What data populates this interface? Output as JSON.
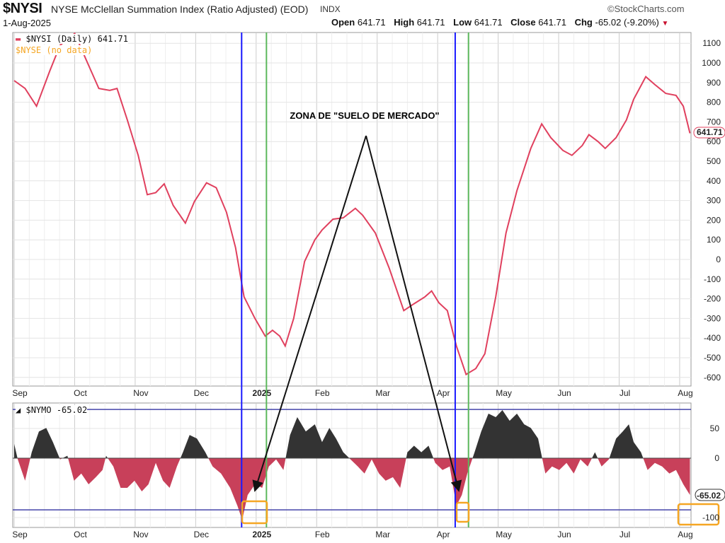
{
  "header": {
    "symbol": "$NYSI",
    "title": "NYSE McClellan Summation Index (Ratio Adjusted) (EOD)",
    "exchange": "INDX",
    "brand": "©StockCharts.com",
    "date": "1-Aug-2025",
    "open_label": "Open",
    "open": "641.71",
    "high_label": "High",
    "high": "641.71",
    "low_label": "Low",
    "low": "641.71",
    "close_label": "Close",
    "close": "641.71",
    "chg_label": "Chg",
    "chg": "-65.02 (-9.20%)",
    "chg_arrow": "▼"
  },
  "colors": {
    "nysi": "#e0405e",
    "nymo_pos": "#333333",
    "nymo_neg": "#c8405a",
    "blue": "#1a1aff",
    "green": "#5cb85c",
    "orange": "#f5a623",
    "ref": "#4444aa"
  },
  "chart_data": [
    {
      "type": "line",
      "title": "$NYSI (Daily) 641.71",
      "legend": [
        "$NYSI (Daily) 641.71",
        "$NYSE (no data)"
      ],
      "legend_placement": "top-left",
      "x_unit": "months since 1-Sep-2024",
      "x_ticks": [
        {
          "m": 0,
          "label": "Sep"
        },
        {
          "m": 1,
          "label": "Oct"
        },
        {
          "m": 2,
          "label": "Nov"
        },
        {
          "m": 3,
          "label": "Dec"
        },
        {
          "m": 4,
          "label": "2025"
        },
        {
          "m": 5,
          "label": "Feb"
        },
        {
          "m": 6,
          "label": "Mar"
        },
        {
          "m": 7,
          "label": "Apr"
        },
        {
          "m": 8,
          "label": "May"
        },
        {
          "m": 9,
          "label": "Jun"
        },
        {
          "m": 10,
          "label": "Jul"
        },
        {
          "m": 11,
          "label": "Aug"
        }
      ],
      "ylim": [
        -650,
        1150
      ],
      "y_ticks": [
        1100,
        1000,
        900,
        800,
        700,
        600,
        500,
        400,
        300,
        200,
        100,
        0,
        -100,
        -200,
        -300,
        -400,
        -500,
        -600
      ],
      "last_value_label": "641.71",
      "series": [
        {
          "name": "$NYSI",
          "points": [
            [
              0,
              910
            ],
            [
              0.18,
              870
            ],
            [
              0.37,
              780
            ],
            [
              0.59,
              960
            ],
            [
              0.76,
              1090
            ],
            [
              1.0,
              1150
            ],
            [
              1.17,
              1030
            ],
            [
              1.4,
              870
            ],
            [
              1.58,
              860
            ],
            [
              1.7,
              870
            ],
            [
              1.87,
              710
            ],
            [
              2.05,
              530
            ],
            [
              2.2,
              330
            ],
            [
              2.34,
              340
            ],
            [
              2.48,
              385
            ],
            [
              2.63,
              275
            ],
            [
              2.83,
              185
            ],
            [
              2.98,
              295
            ],
            [
              3.18,
              390
            ],
            [
              3.34,
              365
            ],
            [
              3.51,
              240
            ],
            [
              3.66,
              60
            ],
            [
              3.8,
              -190
            ],
            [
              3.98,
              -300
            ],
            [
              4.15,
              -390
            ],
            [
              4.27,
              -360
            ],
            [
              4.39,
              -390
            ],
            [
              4.48,
              -440
            ],
            [
              4.62,
              -300
            ],
            [
              4.8,
              -10
            ],
            [
              4.97,
              100
            ],
            [
              5.09,
              150
            ],
            [
              5.27,
              205
            ],
            [
              5.44,
              212
            ],
            [
              5.64,
              260
            ],
            [
              5.76,
              225
            ],
            [
              5.97,
              135
            ],
            [
              6.2,
              -45
            ],
            [
              6.44,
              -260
            ],
            [
              6.61,
              -225
            ],
            [
              6.79,
              -190
            ],
            [
              6.9,
              -160
            ],
            [
              7.02,
              -220
            ],
            [
              7.16,
              -260
            ],
            [
              7.31,
              -440
            ],
            [
              7.47,
              -585
            ],
            [
              7.63,
              -555
            ],
            [
              7.78,
              -480
            ],
            [
              7.96,
              -190
            ],
            [
              8.13,
              135
            ],
            [
              8.31,
              350
            ],
            [
              8.54,
              565
            ],
            [
              8.72,
              690
            ],
            [
              8.87,
              620
            ],
            [
              9.07,
              555
            ],
            [
              9.22,
              530
            ],
            [
              9.39,
              580
            ],
            [
              9.5,
              635
            ],
            [
              9.65,
              600
            ],
            [
              9.77,
              565
            ],
            [
              9.95,
              620
            ],
            [
              10.12,
              710
            ],
            [
              10.24,
              815
            ],
            [
              10.44,
              930
            ],
            [
              10.59,
              890
            ],
            [
              10.77,
              845
            ],
            [
              10.94,
              835
            ],
            [
              11.06,
              780
            ],
            [
              11.17,
              642
            ]
          ]
        }
      ],
      "vertical_markers": [
        {
          "m": 3.76,
          "color": "blue"
        },
        {
          "m": 4.17,
          "color": "green"
        },
        {
          "m": 7.29,
          "color": "blue"
        },
        {
          "m": 7.51,
          "color": "green"
        }
      ],
      "annotation": "ZONA DE \"SUELO DE MERCADO\""
    },
    {
      "type": "area",
      "title": "$NYMO -65.02",
      "legend": [
        "$NYMO -65.02"
      ],
      "ylim": [
        -115,
        90
      ],
      "y_ticks": [
        50,
        0,
        -100
      ],
      "reference_lines": [
        82,
        -87
      ],
      "last_value_label": "-65.02",
      "highlighted_level_label": "-100",
      "series": [
        {
          "name": "$NYMO",
          "points": [
            [
              0,
              24
            ],
            [
              0.06,
              -2
            ],
            [
              0.18,
              -38
            ],
            [
              0.29,
              10
            ],
            [
              0.41,
              45
            ],
            [
              0.53,
              51
            ],
            [
              0.64,
              27
            ],
            [
              0.76,
              -2
            ],
            [
              0.88,
              4
            ],
            [
              0.99,
              -38
            ],
            [
              1.11,
              -26
            ],
            [
              1.23,
              -44
            ],
            [
              1.35,
              -32
            ],
            [
              1.46,
              -20
            ],
            [
              1.52,
              4
            ],
            [
              1.64,
              -14
            ],
            [
              1.76,
              -50
            ],
            [
              1.87,
              -50
            ],
            [
              1.99,
              -38
            ],
            [
              2.11,
              -56
            ],
            [
              2.22,
              -44
            ],
            [
              2.34,
              -8
            ],
            [
              2.46,
              -38
            ],
            [
              2.57,
              -50
            ],
            [
              2.69,
              -14
            ],
            [
              2.79,
              10
            ],
            [
              2.9,
              39
            ],
            [
              3.02,
              33
            ],
            [
              3.16,
              10
            ],
            [
              3.28,
              -14
            ],
            [
              3.42,
              -26
            ],
            [
              3.57,
              -50
            ],
            [
              3.69,
              -80
            ],
            [
              3.77,
              -104
            ],
            [
              3.86,
              -62
            ],
            [
              3.98,
              -44
            ],
            [
              4.1,
              -50
            ],
            [
              4.21,
              -14
            ],
            [
              4.33,
              -2
            ],
            [
              4.45,
              -20
            ],
            [
              4.56,
              39
            ],
            [
              4.68,
              69
            ],
            [
              4.82,
              45
            ],
            [
              4.97,
              57
            ],
            [
              5.09,
              27
            ],
            [
              5.21,
              51
            ],
            [
              5.32,
              33
            ],
            [
              5.44,
              10
            ],
            [
              5.56,
              -2
            ],
            [
              5.68,
              -14
            ],
            [
              5.79,
              -26
            ],
            [
              5.91,
              -2
            ],
            [
              6.03,
              -26
            ],
            [
              6.14,
              -38
            ],
            [
              6.26,
              -32
            ],
            [
              6.38,
              -50
            ],
            [
              6.5,
              10
            ],
            [
              6.61,
              21
            ],
            [
              6.73,
              10
            ],
            [
              6.85,
              21
            ],
            [
              6.96,
              -8
            ],
            [
              7.08,
              -20
            ],
            [
              7.2,
              -14
            ],
            [
              7.31,
              -80
            ],
            [
              7.4,
              -62
            ],
            [
              7.49,
              -26
            ],
            [
              7.61,
              10
            ],
            [
              7.72,
              45
            ],
            [
              7.84,
              75
            ],
            [
              7.96,
              69
            ],
            [
              8.07,
              81
            ],
            [
              8.19,
              63
            ],
            [
              8.31,
              75
            ],
            [
              8.43,
              57
            ],
            [
              8.54,
              51
            ],
            [
              8.66,
              33
            ],
            [
              8.78,
              -26
            ],
            [
              8.89,
              -14
            ],
            [
              9.01,
              -20
            ],
            [
              9.13,
              -8
            ],
            [
              9.25,
              -26
            ],
            [
              9.36,
              -2
            ],
            [
              9.48,
              -14
            ],
            [
              9.6,
              10
            ],
            [
              9.71,
              -14
            ],
            [
              9.83,
              -2
            ],
            [
              9.95,
              33
            ],
            [
              10.06,
              45
            ],
            [
              10.16,
              57
            ],
            [
              10.24,
              27
            ],
            [
              10.36,
              10
            ],
            [
              10.47,
              -20
            ],
            [
              10.59,
              -8
            ],
            [
              10.71,
              -14
            ],
            [
              10.83,
              -26
            ],
            [
              10.94,
              -20
            ],
            [
              11.06,
              -44
            ],
            [
              11.17,
              -62
            ]
          ]
        }
      ]
    }
  ]
}
